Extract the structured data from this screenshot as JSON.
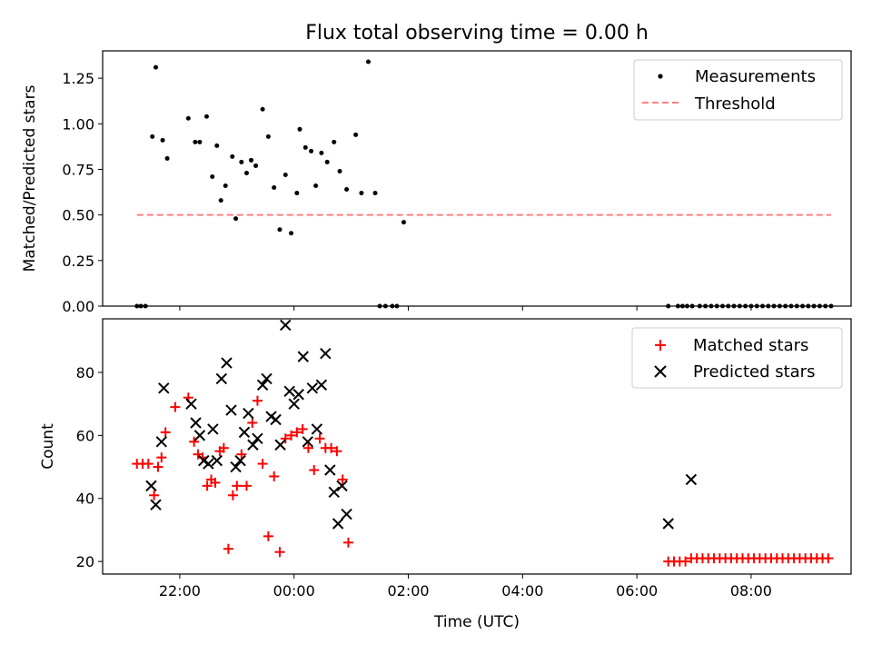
{
  "figure": {
    "title": "Flux total observing time = 0.00 h",
    "xlabel": "Time (UTC)",
    "x_ticks": [
      "22:00",
      "00:00",
      "02:00",
      "04:00",
      "06:00",
      "08:00"
    ],
    "x_tick_hours": [
      22,
      24,
      26,
      28,
      30,
      32
    ],
    "x_range_hours": [
      20.65,
      33.75
    ]
  },
  "chart_data": [
    {
      "type": "scatter",
      "ylabel": "Matched/Predicted stars",
      "ylim": [
        0,
        1.4
      ],
      "y_ticks": [
        0.0,
        0.25,
        0.5,
        0.75,
        1.0,
        1.25
      ],
      "y_tick_labels": [
        "0.00",
        "0.25",
        "0.50",
        "0.75",
        "1.00",
        "1.25"
      ],
      "legend_position": "upper-right",
      "series": [
        {
          "name": "Measurements",
          "kind": "points",
          "color": "#000000",
          "x": [
            21.25,
            21.32,
            21.4,
            21.52,
            21.58,
            21.7,
            21.78,
            22.15,
            22.27,
            22.35,
            22.47,
            22.57,
            22.65,
            22.72,
            22.8,
            22.92,
            22.98,
            23.08,
            23.17,
            23.25,
            23.33,
            23.45,
            23.55,
            23.65,
            23.75,
            23.85,
            23.95,
            24.05,
            24.1,
            24.2,
            24.3,
            24.38,
            24.48,
            24.58,
            24.7,
            24.8,
            24.92,
            25.08,
            25.18,
            25.3,
            25.42,
            25.5,
            25.6,
            25.72,
            25.8,
            25.92,
            30.55,
            30.72,
            30.8,
            30.88,
            30.97,
            31.1,
            31.2,
            31.3,
            31.4,
            31.5,
            31.6,
            31.7,
            31.8,
            31.9,
            32.0,
            32.1,
            32.2,
            32.3,
            32.4,
            32.5,
            32.6,
            32.7,
            32.8,
            32.9,
            33.0,
            33.1,
            33.2,
            33.3,
            33.4
          ],
          "y": [
            0,
            0,
            0,
            0.93,
            1.31,
            0.91,
            0.81,
            1.03,
            0.9,
            0.9,
            1.04,
            0.71,
            0.88,
            0.58,
            0.66,
            0.82,
            0.48,
            0.79,
            0.73,
            0.8,
            0.77,
            1.08,
            0.93,
            0.65,
            0.42,
            0.72,
            0.4,
            0.62,
            0.97,
            0.87,
            0.85,
            0.66,
            0.84,
            0.79,
            0.9,
            0.74,
            0.64,
            0.94,
            0.62,
            1.34,
            0.62,
            0,
            0,
            0,
            0,
            0.46,
            0,
            0,
            0,
            0,
            0,
            0,
            0,
            0,
            0,
            0,
            0,
            0,
            0,
            0,
            0,
            0,
            0,
            0,
            0,
            0,
            0,
            0,
            0,
            0,
            0,
            0,
            0,
            0,
            0
          ]
        },
        {
          "name": "Threshold",
          "kind": "dashed-line",
          "color": "#ff7f7f",
          "x": [
            21.25,
            33.4
          ],
          "y": [
            0.5,
            0.5
          ]
        }
      ]
    },
    {
      "type": "scatter",
      "ylabel": "Count",
      "ylim": [
        16,
        97
      ],
      "y_ticks": [
        20,
        40,
        60,
        80
      ],
      "y_tick_labels": [
        "20",
        "40",
        "60",
        "80"
      ],
      "legend_position": "upper-right",
      "series": [
        {
          "name": "Matched stars",
          "marker": "plus",
          "color": "#ff0000",
          "x": [
            21.25,
            21.35,
            21.45,
            21.55,
            21.62,
            21.68,
            21.75,
            21.92,
            22.15,
            22.25,
            22.32,
            22.4,
            22.48,
            22.55,
            22.62,
            22.7,
            22.77,
            22.85,
            22.93,
            23.0,
            23.08,
            23.17,
            23.27,
            23.36,
            23.45,
            23.55,
            23.65,
            23.75,
            23.85,
            23.95,
            24.05,
            24.15,
            24.25,
            24.35,
            24.45,
            24.55,
            24.65,
            24.75,
            24.85,
            24.95,
            30.55,
            30.65,
            30.75,
            30.85,
            30.95,
            31.05,
            31.15,
            31.25,
            31.35,
            31.45,
            31.55,
            31.65,
            31.75,
            31.85,
            31.95,
            32.05,
            32.15,
            32.25,
            32.35,
            32.45,
            32.55,
            32.65,
            32.75,
            32.85,
            32.95,
            33.05,
            33.15,
            33.25,
            33.35
          ],
          "y": [
            51,
            51,
            51,
            41,
            50,
            53,
            61,
            69,
            72,
            58,
            54,
            53,
            44,
            46,
            45,
            55,
            56,
            24,
            41,
            44,
            54,
            44,
            64,
            71,
            51,
            28,
            47,
            23,
            59,
            60,
            61,
            62,
            56,
            49,
            59,
            56,
            56,
            55,
            46,
            26,
            20,
            20,
            20,
            20,
            21,
            21,
            21,
            21,
            21,
            21,
            21,
            21,
            21,
            21,
            21,
            21,
            21,
            21,
            21,
            21,
            21,
            21,
            21,
            21,
            21,
            21,
            21,
            21,
            21
          ]
        },
        {
          "name": "Predicted stars",
          "marker": "x",
          "color": "#000000",
          "x": [
            21.5,
            21.58,
            21.68,
            21.72,
            22.2,
            22.28,
            22.35,
            22.42,
            22.5,
            22.58,
            22.65,
            22.73,
            22.82,
            22.9,
            22.98,
            23.06,
            23.13,
            23.2,
            23.28,
            23.36,
            23.45,
            23.52,
            23.6,
            23.68,
            23.76,
            23.85,
            23.92,
            24.0,
            24.08,
            24.16,
            24.24,
            24.32,
            24.4,
            24.48,
            24.55,
            24.63,
            24.7,
            24.77,
            24.84,
            24.92,
            30.55,
            30.95
          ],
          "y": [
            44,
            38,
            58,
            75,
            70,
            64,
            60,
            52,
            51,
            62,
            52,
            78,
            83,
            68,
            50,
            52,
            61,
            67,
            57,
            59,
            76,
            78,
            66,
            65,
            57,
            95,
            74,
            70,
            73,
            85,
            58,
            75,
            62,
            76,
            86,
            49,
            42,
            32,
            44,
            35,
            32,
            46
          ]
        }
      ]
    }
  ]
}
